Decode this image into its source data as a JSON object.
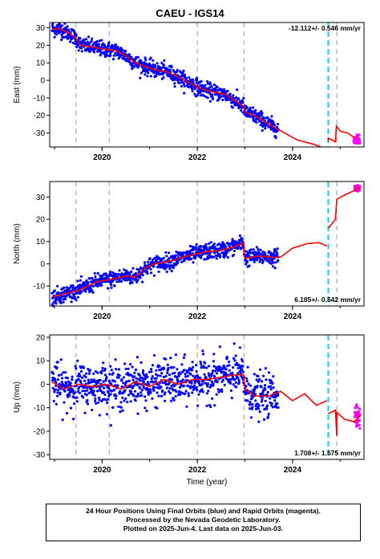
{
  "title": "CAEU - IGS14",
  "xlabel": "Time (year)",
  "footer": {
    "line1": "24 Hour Positions Using Final Orbits (blue) and Rapid Orbits (magenta).",
    "line2": "Processed by the Nevada Geodetic Laboratory.",
    "line3": "Plotted on 2025-Jun-4. Last data on 2025-Jun-03."
  },
  "colors": {
    "final": "#0000ff",
    "rapid": "#ff00ff",
    "model": "#ff0000",
    "equipment": "#aaaaaa",
    "event": "#00d8e8"
  },
  "chart_data": [
    {
      "type": "scatter",
      "name": "east",
      "ylabel": "East (mm)",
      "rate_label": "-12.112+/- 0.546 mm/yr",
      "rate_position": "top-right",
      "xlim": [
        2018.9,
        2025.5
      ],
      "ylim": [
        -38,
        33
      ],
      "yticks": [
        -30,
        -20,
        -10,
        0,
        10,
        20,
        30
      ],
      "xticks": [
        2020,
        2022,
        2024
      ],
      "steps": [],
      "model_points": [
        [
          2018.95,
          29
        ],
        [
          2019.1,
          29.5
        ],
        [
          2019.3,
          27
        ],
        [
          2019.45,
          24
        ],
        [
          2019.55,
          20
        ],
        [
          2019.8,
          19
        ],
        [
          2020.1,
          17.5
        ],
        [
          2020.3,
          17
        ],
        [
          2020.5,
          14
        ],
        [
          2020.7,
          10
        ],
        [
          2020.9,
          8
        ],
        [
          2021.1,
          6
        ],
        [
          2021.35,
          5
        ],
        [
          2021.6,
          2
        ],
        [
          2021.8,
          -1
        ],
        [
          2022.1,
          -5
        ],
        [
          2022.3,
          -6.5
        ],
        [
          2022.6,
          -8
        ],
        [
          2022.8,
          -12
        ],
        [
          2022.98,
          -15
        ],
        [
          2023.0,
          -18
        ],
        [
          2023.2,
          -20
        ],
        [
          2023.5,
          -25
        ],
        [
          2023.7,
          -28
        ],
        [
          2024.1,
          -34
        ],
        [
          2024.45,
          -36.5
        ],
        [
          2024.6,
          -38
        ]
      ],
      "model_points_b": [
        [
          2024.75,
          -35
        ],
        [
          2024.75,
          -33
        ],
        [
          2024.9,
          -35
        ],
        [
          2024.92,
          -26
        ],
        [
          2025.0,
          -29
        ],
        [
          2025.15,
          -30
        ],
        [
          2025.32,
          -33
        ]
      ],
      "final": {
        "start": 2018.95,
        "end": 2023.7,
        "spread": 2.2,
        "count": 900
      },
      "rapid": {
        "start": 2025.28,
        "end": 2025.42,
        "center": -34,
        "spread": 2.0,
        "count": 40
      }
    },
    {
      "type": "scatter",
      "name": "north",
      "ylabel": "North (mm)",
      "rate_label": "6.185+/- 0.542 mm/yr",
      "rate_position": "bottom-right",
      "xlim": [
        2018.9,
        2025.5
      ],
      "ylim": [
        -19,
        37
      ],
      "yticks": [
        -10,
        0,
        10,
        20,
        30
      ],
      "xticks": [
        2020,
        2022,
        2024
      ],
      "model_points": [
        [
          2018.95,
          -15
        ],
        [
          2019.2,
          -13.5
        ],
        [
          2019.5,
          -12
        ],
        [
          2019.7,
          -10
        ],
        [
          2019.9,
          -8
        ],
        [
          2020.2,
          -7
        ],
        [
          2020.5,
          -5.5
        ],
        [
          2020.7,
          -6
        ],
        [
          2020.9,
          -2
        ],
        [
          2021.1,
          0
        ],
        [
          2021.4,
          1
        ],
        [
          2021.7,
          3
        ],
        [
          2021.9,
          4
        ],
        [
          2022.2,
          5.5
        ],
        [
          2022.5,
          6
        ],
        [
          2022.75,
          7.5
        ],
        [
          2022.97,
          9.5
        ],
        [
          2023.0,
          2.5
        ],
        [
          2023.3,
          3.5
        ],
        [
          2023.6,
          2.8
        ],
        [
          2023.75,
          3
        ],
        [
          2024.0,
          7
        ],
        [
          2024.3,
          9
        ],
        [
          2024.55,
          9.5
        ],
        [
          2024.72,
          8
        ]
      ],
      "model_points_b": [
        [
          2024.75,
          16
        ],
        [
          2024.9,
          20
        ],
        [
          2024.93,
          29
        ],
        [
          2025.1,
          31
        ],
        [
          2025.3,
          33
        ],
        [
          2025.42,
          34.5
        ]
      ],
      "final": {
        "start": 2018.95,
        "end": 2023.7,
        "spread": 1.8,
        "count": 900
      },
      "rapid": {
        "start": 2025.3,
        "end": 2025.42,
        "center": 34,
        "spread": 1.2,
        "count": 40
      }
    },
    {
      "type": "scatter",
      "name": "up",
      "ylabel": "Up (mm)",
      "rate_label": "1.708+/- 1.575 mm/yr",
      "rate_position": "bottom-right",
      "xlim": [
        2018.9,
        2025.5
      ],
      "ylim": [
        -32,
        21
      ],
      "yticks": [
        -30,
        -20,
        -10,
        0,
        10,
        20
      ],
      "xticks": [
        2020,
        2022,
        2024
      ],
      "model_points": [
        [
          2018.95,
          1
        ],
        [
          2019.2,
          -2
        ],
        [
          2019.5,
          0
        ],
        [
          2019.8,
          -1
        ],
        [
          2020.1,
          0
        ],
        [
          2020.4,
          -2
        ],
        [
          2020.7,
          1
        ],
        [
          2021.0,
          -1
        ],
        [
          2021.3,
          2
        ],
        [
          2021.6,
          0
        ],
        [
          2021.9,
          2
        ],
        [
          2022.2,
          2
        ],
        [
          2022.5,
          3
        ],
        [
          2022.8,
          4
        ],
        [
          2022.97,
          4
        ],
        [
          2023.0,
          -2
        ],
        [
          2023.2,
          -5
        ],
        [
          2023.5,
          -5
        ],
        [
          2023.75,
          -3
        ],
        [
          2024.0,
          -7
        ],
        [
          2024.25,
          -4
        ],
        [
          2024.5,
          -9
        ],
        [
          2024.72,
          -7
        ]
      ],
      "model_points_b": [
        [
          2024.75,
          -12.5
        ],
        [
          2024.9,
          -11
        ],
        [
          2024.93,
          -22
        ],
        [
          2024.93,
          -12
        ],
        [
          2025.1,
          -15
        ],
        [
          2025.3,
          -16
        ],
        [
          2025.42,
          -13
        ]
      ],
      "final": {
        "start": 2018.95,
        "end": 2023.7,
        "spread": 4.5,
        "count": 900
      },
      "rapid": {
        "start": 2025.3,
        "end": 2025.42,
        "center": -14,
        "spread": 4.5,
        "count": 40
      }
    }
  ],
  "equipment_changes": [
    2019.45,
    2020.15,
    2022.0,
    2022.98,
    2024.93
  ],
  "event_markers": [
    2024.75
  ]
}
